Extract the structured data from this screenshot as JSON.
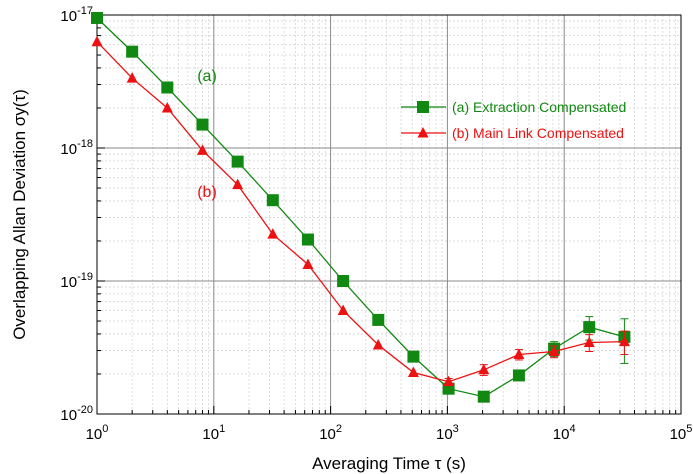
{
  "chart_data": {
    "type": "line",
    "xlabel": "Averaging Time τ (s)",
    "ylabel": "Overlapping Allan Deviation σy(τ)",
    "xscale": "log",
    "yscale": "log",
    "xlim": [
      1,
      100000
    ],
    "ylim": [
      1e-20,
      1e-17
    ],
    "grid": true,
    "legend_position": "top-right",
    "x_ticks": [
      {
        "value": 1,
        "base": "10",
        "exp": "0"
      },
      {
        "value": 10,
        "base": "10",
        "exp": "1"
      },
      {
        "value": 100,
        "base": "10",
        "exp": "2"
      },
      {
        "value": 1000,
        "base": "10",
        "exp": "3"
      },
      {
        "value": 10000,
        "base": "10",
        "exp": "4"
      },
      {
        "value": 100000,
        "base": "10",
        "exp": "5"
      }
    ],
    "y_ticks": [
      {
        "value": 1e-17,
        "base": "10",
        "exp": "-17"
      },
      {
        "value": 1e-18,
        "base": "10",
        "exp": "-18"
      },
      {
        "value": 1e-19,
        "base": "10",
        "exp": "-19"
      },
      {
        "value": 1e-20,
        "base": "10",
        "exp": "-20"
      }
    ],
    "series": [
      {
        "name": "(a) Extraction Compensated",
        "annotation": "(a)",
        "color": "#118811",
        "marker": "square",
        "x": [
          1,
          2,
          4,
          8,
          16,
          32,
          64,
          128,
          256,
          512,
          1024,
          2048,
          4096,
          8192,
          16384,
          32768
        ],
        "y": [
          9.5e-18,
          5.3e-18,
          2.85e-18,
          1.5e-18,
          7.9e-19,
          4.05e-19,
          2.05e-19,
          1e-19,
          5.1e-20,
          2.7e-20,
          1.55e-20,
          1.35e-20,
          1.95e-20,
          3.1e-20,
          4.5e-20,
          3.8e-20
        ],
        "err": [
          0,
          0,
          0,
          0,
          0,
          0,
          0,
          0,
          0,
          0,
          0,
          0,
          0,
          4e-21,
          9e-21,
          1.4e-20
        ]
      },
      {
        "name": "(b) Main Link Compensated",
        "annotation": "(b)",
        "color": "#ee1111",
        "marker": "triangle",
        "x": [
          1,
          2,
          4,
          8,
          16,
          32,
          64,
          128,
          256,
          512,
          1024,
          2048,
          4096,
          8192,
          16384,
          32768
        ],
        "y": [
          6.3e-18,
          3.35e-18,
          2e-18,
          9.6e-19,
          5.3e-19,
          2.25e-19,
          1.33e-19,
          6e-20,
          3.3e-20,
          2.05e-20,
          1.75e-20,
          2.15e-20,
          2.8e-20,
          2.95e-20,
          3.45e-20,
          3.5e-20
        ],
        "err": [
          0,
          0,
          0,
          0,
          0,
          0,
          0,
          0,
          0,
          0,
          1e-21,
          2e-21,
          2.5e-21,
          3e-21,
          5e-21,
          7e-21
        ]
      }
    ]
  }
}
